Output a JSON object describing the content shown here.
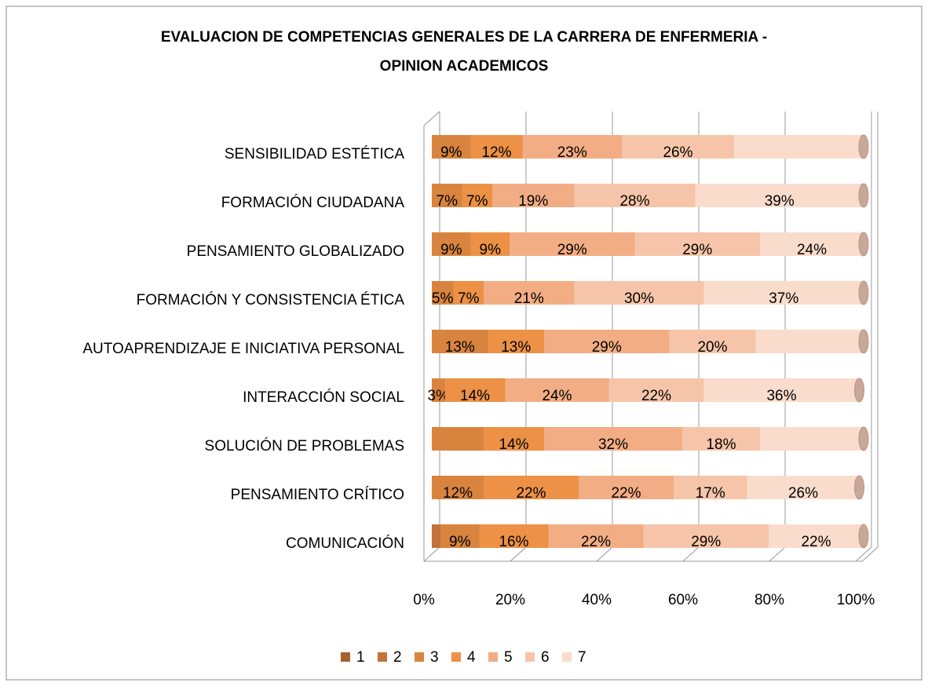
{
  "chart_data": {
    "type": "stacked_bar_horizontal",
    "title": [
      "EVALUACION DE COMPETENCIAS GENERALES DE LA CARRERA DE ENFERMERIA -",
      "OPINION ACADEMICOS"
    ],
    "categories": [
      "SENSIBILIDAD ESTÉTICA",
      "FORMACIÓN CIUDADANA",
      "PENSAMIENTO GLOBALIZADO",
      "FORMACIÓN Y CONSISTENCIA ÉTICA",
      "AUTOAPRENDIZAJE E INICIATIVA PERSONAL",
      "INTERACCIÓN SOCIAL",
      "SOLUCIÓN DE PROBLEMAS",
      "PENSAMIENTO CRÍTICO",
      "COMUNICACIÓN"
    ],
    "series": [
      {
        "name": "1",
        "color": "#a5622f",
        "values": [
          0,
          0,
          0,
          0,
          0,
          0,
          0,
          0,
          0
        ],
        "value_labels": [
          null,
          null,
          null,
          null,
          null,
          null,
          null,
          null,
          null
        ]
      },
      {
        "name": "2",
        "color": "#c1733a",
        "values": [
          0,
          0,
          0,
          0,
          0,
          0,
          0,
          0,
          2
        ],
        "value_labels": [
          null,
          null,
          null,
          null,
          null,
          null,
          null,
          null,
          null
        ]
      },
      {
        "name": "3",
        "color": "#d8843f",
        "values": [
          9,
          7,
          9,
          5,
          13,
          3,
          12,
          12,
          9
        ],
        "value_labels": [
          "9%",
          "7%",
          "9%",
          "5%",
          "13%",
          "3%",
          null,
          "12%",
          "9%"
        ]
      },
      {
        "name": "4",
        "color": "#ec9146",
        "values": [
          12,
          7,
          9,
          7,
          13,
          14,
          14,
          22,
          16
        ],
        "value_labels": [
          "12%",
          "7%",
          "9%",
          "7%",
          "13%",
          "14%",
          "14%",
          "22%",
          "16%"
        ]
      },
      {
        "name": "5",
        "color": "#f2ad84",
        "values": [
          23,
          19,
          29,
          21,
          29,
          24,
          32,
          22,
          22
        ],
        "value_labels": [
          "23%",
          "19%",
          "29%",
          "21%",
          "29%",
          "24%",
          "32%",
          "22%",
          "22%"
        ]
      },
      {
        "name": "6",
        "color": "#f6c5a9",
        "values": [
          26,
          28,
          29,
          30,
          20,
          22,
          18,
          17,
          29
        ],
        "value_labels": [
          "26%",
          "28%",
          "29%",
          "30%",
          "20%",
          "22%",
          "18%",
          "17%",
          "29%"
        ]
      },
      {
        "name": "7",
        "color": "#fadccc",
        "values": [
          30,
          39,
          24,
          37,
          25,
          36,
          24,
          26,
          22
        ],
        "value_labels": [
          null,
          "39%",
          "24%",
          "37%",
          null,
          "36%",
          null,
          "26%",
          "22%"
        ]
      }
    ],
    "xlim": [
      0,
      100
    ],
    "xticks": [
      {
        "value": 0,
        "label": "0%"
      },
      {
        "value": 20,
        "label": "20%"
      },
      {
        "value": 40,
        "label": "40%"
      },
      {
        "value": 60,
        "label": "60%"
      },
      {
        "value": 80,
        "label": "80%"
      },
      {
        "value": 100,
        "label": "100%"
      }
    ],
    "grid": true,
    "legend": "bottom"
  }
}
